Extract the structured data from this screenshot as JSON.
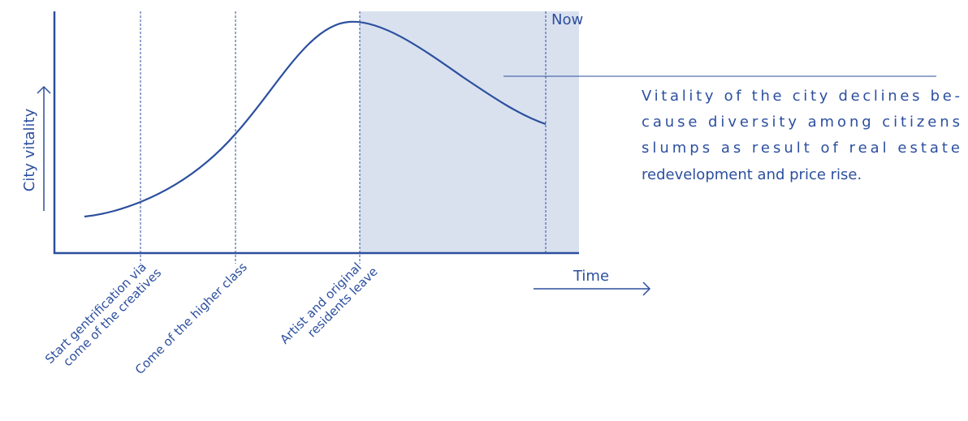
{
  "y_axis_label": "City vitality",
  "x_axis_label": "Time",
  "now_label": "Now",
  "phases": [
    {
      "lines": [
        "Start gentrification via",
        "come of the creatives"
      ]
    },
    {
      "lines": [
        "Come of the higher class"
      ]
    },
    {
      "lines": [
        "Artist and original",
        "residents leave"
      ]
    }
  ],
  "annotation": {
    "lines": [
      "Vitality of the city declines be-",
      "cause diversity among citizens",
      "slumps as result of real estate",
      "redevelopment and price rise."
    ]
  }
}
